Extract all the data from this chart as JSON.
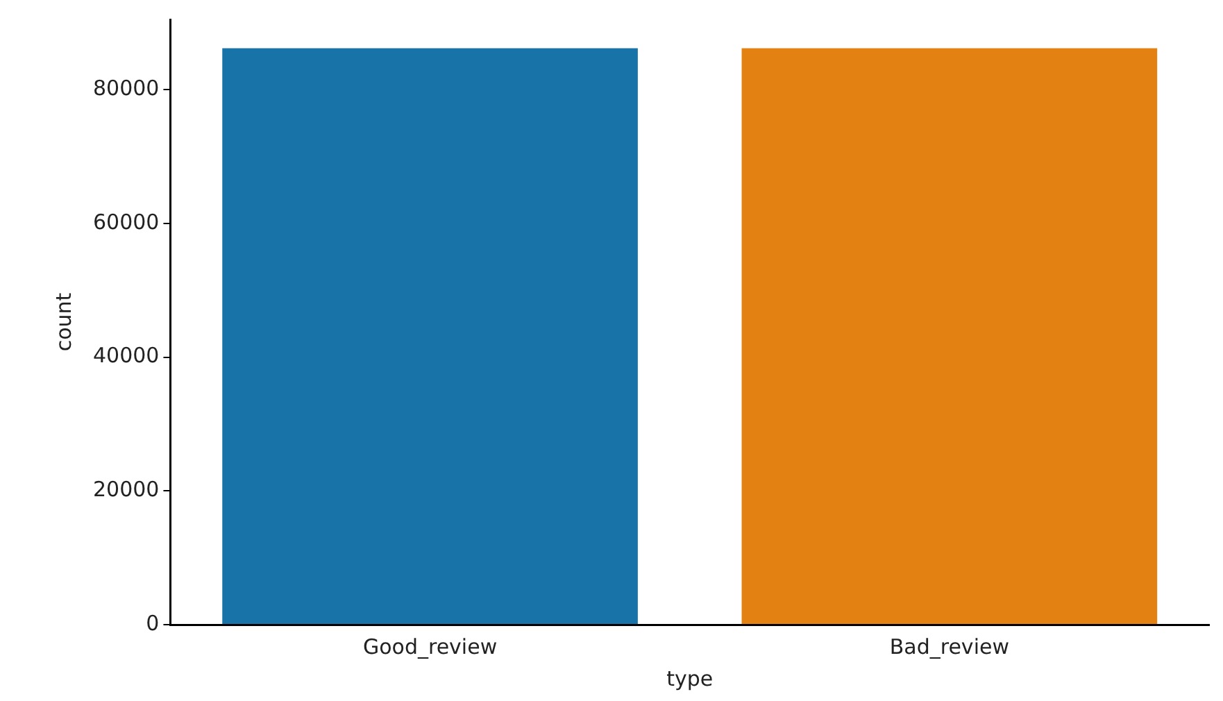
{
  "chart_data": {
    "type": "bar",
    "xlabel": "type",
    "ylabel": "count",
    "categories": [
      "Good_review",
      "Bad_review"
    ],
    "values": [
      86200,
      86200
    ],
    "colors": [
      "#1874a8",
      "#e38112"
    ],
    "ylim": [
      0,
      90500
    ],
    "yticks": [
      0,
      20000,
      40000,
      60000,
      80000
    ],
    "grid": false,
    "legend": false
  }
}
